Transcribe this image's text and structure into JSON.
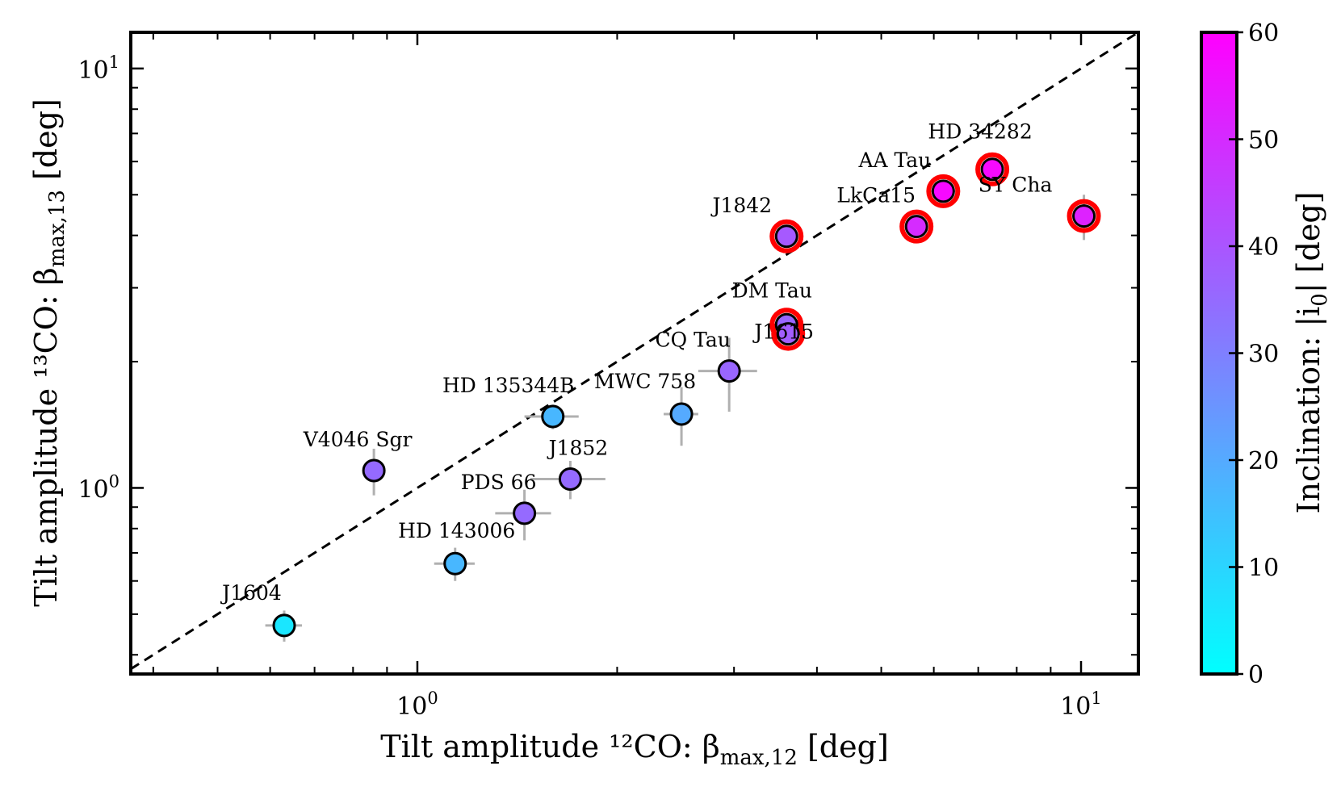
{
  "chart_data": {
    "type": "scatter",
    "xlabel": "Tilt amplitude ¹²CO: β",
    "xlabel_sub": "max,12",
    "xlabel_unit": " [deg]",
    "ylabel": "Tilt amplitude ¹³CO: β",
    "ylabel_sub": "max,13",
    "ylabel_unit": " [deg]",
    "x_scale": "log",
    "y_scale": "log",
    "xlim": [
      0.37,
      12.2
    ],
    "ylim": [
      0.36,
      12.2
    ],
    "x_tick_labels": [
      {
        "value": 1,
        "base": "10",
        "exp": "0"
      },
      {
        "value": 10,
        "base": "10",
        "exp": "1"
      }
    ],
    "y_tick_labels": [
      {
        "value": 1,
        "base": "10",
        "exp": "0"
      },
      {
        "value": 10,
        "base": "10",
        "exp": "1"
      }
    ],
    "reference_line": "y = x",
    "colorbar": {
      "label": "Inclination: |i",
      "label_sub": "0",
      "label_unit": "| [deg]",
      "range": [
        0,
        60
      ],
      "ticks": [
        "0",
        "10",
        "20",
        "30",
        "40",
        "50",
        "60"
      ],
      "colormap": [
        "#00ffff",
        "#ff00ff"
      ]
    },
    "highlight_color": "#ff0000",
    "points": [
      {
        "name": "J1604",
        "x": 0.63,
        "y": 0.47,
        "x_err": 0.04,
        "y_err": 0.04,
        "inclination": 6,
        "highlighted": false
      },
      {
        "name": "HD 143006",
        "x": 1.14,
        "y": 0.66,
        "x_err": 0.08,
        "y_err": 0.06,
        "inclination": 17,
        "highlighted": false
      },
      {
        "name": "V4046 Sgr",
        "x": 0.86,
        "y": 1.1,
        "x_err": 0.02,
        "y_err": 0.14,
        "inclination": 35,
        "highlighted": false
      },
      {
        "name": "PDS 66",
        "x": 1.45,
        "y": 0.87,
        "x_err": 0.14,
        "y_err": 0.12,
        "inclination": 35,
        "highlighted": false
      },
      {
        "name": "J1852",
        "x": 1.7,
        "y": 1.05,
        "x_err": 0.22,
        "y_err": 0.11,
        "inclination": 35,
        "highlighted": false
      },
      {
        "name": "HD 135344B",
        "x": 1.6,
        "y": 1.48,
        "x_err": 0.15,
        "y_err": 0.1,
        "inclination": 17,
        "highlighted": false
      },
      {
        "name": "MWC 758",
        "x": 2.5,
        "y": 1.5,
        "x_err": 0.15,
        "y_err": 0.24,
        "inclination": 20,
        "highlighted": false
      },
      {
        "name": "CQ Tau",
        "x": 2.95,
        "y": 1.9,
        "x_err": 0.3,
        "y_err": 0.38,
        "inclination": 36,
        "highlighted": false
      },
      {
        "name": "DM Tau",
        "x": 3.6,
        "y": 2.45,
        "x_err": 0.1,
        "y_err": 0.16,
        "inclination": 36,
        "highlighted": true
      },
      {
        "name": "J1615",
        "x": 3.62,
        "y": 2.33,
        "x_err": 0.1,
        "y_err": 0.12,
        "inclination": 38,
        "highlighted": true
      },
      {
        "name": "J1842",
        "x": 3.6,
        "y": 3.98,
        "x_err": 0.1,
        "y_err": 0.12,
        "inclination": 39,
        "highlighted": true
      },
      {
        "name": "LkCa15",
        "x": 5.65,
        "y": 4.2,
        "x_err": 0.1,
        "y_err": 0.15,
        "inclination": 50,
        "highlighted": true
      },
      {
        "name": "AA Tau",
        "x": 6.2,
        "y": 5.1,
        "x_err": 0.3,
        "y_err": 0.25,
        "inclination": 58,
        "highlighted": true
      },
      {
        "name": "HD 34282",
        "x": 7.35,
        "y": 5.75,
        "x_err": 0.15,
        "y_err": 0.35,
        "inclination": 58,
        "highlighted": true
      },
      {
        "name": "SY Cha",
        "x": 10.1,
        "y": 4.45,
        "x_err": 0.2,
        "y_err": 0.55,
        "inclination": 52,
        "highlighted": true
      }
    ]
  }
}
